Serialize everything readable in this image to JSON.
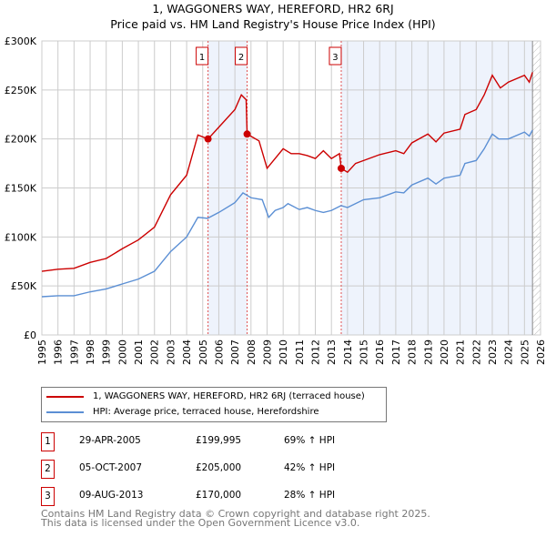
{
  "chart_data": {
    "type": "line",
    "title": "1, WAGGONERS WAY, HEREFORD, HR2 6RJ",
    "subtitle": "Price paid vs. HM Land Registry's House Price Index (HPI)",
    "xlim": [
      1995,
      2026
    ],
    "ylim": [
      0,
      300000
    ],
    "x_ticks": [
      "1995",
      "1996",
      "1997",
      "1998",
      "1999",
      "2000",
      "2001",
      "2002",
      "2003",
      "2004",
      "2005",
      "2006",
      "2007",
      "2008",
      "2009",
      "2010",
      "2011",
      "2012",
      "2013",
      "2014",
      "2015",
      "2016",
      "2017",
      "2018",
      "2019",
      "2020",
      "2021",
      "2022",
      "2023",
      "2024",
      "2025",
      "2026"
    ],
    "y_ticks": [
      {
        "v": 0,
        "label": "£0"
      },
      {
        "v": 50000,
        "label": "£50K"
      },
      {
        "v": 100000,
        "label": "£100K"
      },
      {
        "v": 150000,
        "label": "£150K"
      },
      {
        "v": 200000,
        "label": "£200K"
      },
      {
        "v": 250000,
        "label": "£250K"
      },
      {
        "v": 300000,
        "label": "£300K"
      }
    ],
    "grid": true,
    "series": [
      {
        "name": "1, WAGGONERS WAY, HEREFORD, HR2 6RJ (terraced house)",
        "color": "#cc0000",
        "points": [
          [
            1995,
            65000
          ],
          [
            1996,
            67000
          ],
          [
            1997,
            68000
          ],
          [
            1998,
            74000
          ],
          [
            1999,
            78000
          ],
          [
            2000,
            88000
          ],
          [
            2001,
            97000
          ],
          [
            2002,
            110000
          ],
          [
            2003,
            143000
          ],
          [
            2004,
            163000
          ],
          [
            2004.7,
            204000
          ],
          [
            2005.33,
            200000
          ],
          [
            2006,
            212000
          ],
          [
            2007,
            230000
          ],
          [
            2007.4,
            245000
          ],
          [
            2007.7,
            240000
          ],
          [
            2007.76,
            205000
          ],
          [
            2008.5,
            198000
          ],
          [
            2009,
            170000
          ],
          [
            2009.4,
            178000
          ],
          [
            2010,
            190000
          ],
          [
            2010.5,
            185000
          ],
          [
            2011,
            185000
          ],
          [
            2011.5,
            183000
          ],
          [
            2012,
            180000
          ],
          [
            2012.5,
            188000
          ],
          [
            2013,
            180000
          ],
          [
            2013.5,
            185000
          ],
          [
            2013.61,
            170000
          ],
          [
            2014,
            166000
          ],
          [
            2014.5,
            175000
          ],
          [
            2015,
            178000
          ],
          [
            2016,
            184000
          ],
          [
            2017,
            188000
          ],
          [
            2017.5,
            185000
          ],
          [
            2018,
            196000
          ],
          [
            2019,
            205000
          ],
          [
            2019.5,
            197000
          ],
          [
            2020,
            206000
          ],
          [
            2021,
            210000
          ],
          [
            2021.3,
            225000
          ],
          [
            2022,
            230000
          ],
          [
            2022.5,
            245000
          ],
          [
            2023,
            265000
          ],
          [
            2023.5,
            252000
          ],
          [
            2024,
            258000
          ],
          [
            2025,
            265000
          ],
          [
            2025.3,
            258000
          ],
          [
            2025.5,
            268000
          ]
        ]
      },
      {
        "name": "HPI: Average price, terraced house, Herefordshire",
        "color": "#5b8fd4",
        "points": [
          [
            1995,
            39000
          ],
          [
            1996,
            40000
          ],
          [
            1997,
            40000
          ],
          [
            1998,
            44000
          ],
          [
            1999,
            47000
          ],
          [
            2000,
            52000
          ],
          [
            2001,
            57000
          ],
          [
            2002,
            65000
          ],
          [
            2003,
            85000
          ],
          [
            2004,
            100000
          ],
          [
            2004.7,
            120000
          ],
          [
            2005.3,
            119000
          ],
          [
            2006,
            125000
          ],
          [
            2007,
            135000
          ],
          [
            2007.5,
            145000
          ],
          [
            2008,
            140000
          ],
          [
            2008.7,
            138000
          ],
          [
            2009.1,
            120000
          ],
          [
            2009.5,
            127000
          ],
          [
            2010,
            130000
          ],
          [
            2010.3,
            134000
          ],
          [
            2011,
            128000
          ],
          [
            2011.5,
            130000
          ],
          [
            2012,
            127000
          ],
          [
            2012.5,
            125000
          ],
          [
            2013,
            127000
          ],
          [
            2013.6,
            132000
          ],
          [
            2014,
            130000
          ],
          [
            2015,
            138000
          ],
          [
            2016,
            140000
          ],
          [
            2017,
            146000
          ],
          [
            2017.5,
            145000
          ],
          [
            2018,
            153000
          ],
          [
            2019,
            160000
          ],
          [
            2019.5,
            154000
          ],
          [
            2020,
            160000
          ],
          [
            2021,
            163000
          ],
          [
            2021.3,
            175000
          ],
          [
            2022,
            178000
          ],
          [
            2022.5,
            190000
          ],
          [
            2023,
            205000
          ],
          [
            2023.4,
            200000
          ],
          [
            2024,
            200000
          ],
          [
            2025,
            207000
          ],
          [
            2025.3,
            203000
          ],
          [
            2025.5,
            209000
          ]
        ]
      }
    ],
    "sales": [
      {
        "label": "1",
        "x": 2005.33,
        "price": 199995
      },
      {
        "label": "2",
        "x": 2007.76,
        "price": 205000
      },
      {
        "label": "3",
        "x": 2013.61,
        "price": 170000
      }
    ],
    "shaded_ranges": [
      [
        2005.33,
        2007.76
      ],
      [
        2013.61,
        2025.5
      ]
    ],
    "hatched_from": 2025.5
  },
  "table": [
    {
      "num": "1",
      "date": "29-APR-2005",
      "price": "£199,995",
      "hpi": "69% ↑ HPI"
    },
    {
      "num": "2",
      "date": "05-OCT-2007",
      "price": "£205,000",
      "hpi": "42% ↑ HPI"
    },
    {
      "num": "3",
      "date": "09-AUG-2013",
      "price": "£170,000",
      "hpi": "28% ↑ HPI"
    }
  ],
  "footer": {
    "line1": "Contains HM Land Registry data © Crown copyright and database right 2025.",
    "line2": "This data is licensed under the Open Government Licence v3.0."
  }
}
